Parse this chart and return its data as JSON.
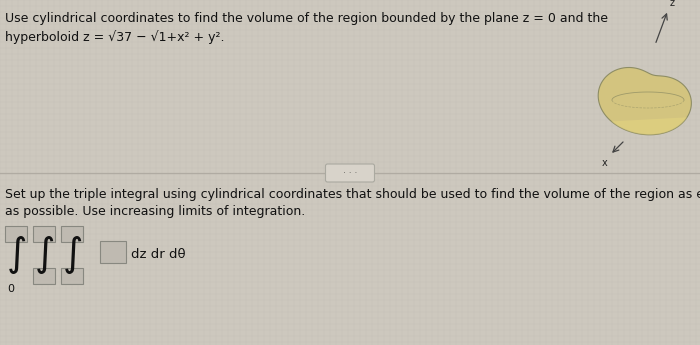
{
  "title_line1": "Use cylindrical coordinates to find the volume of the region bounded by the plane z = 0 and the",
  "title_line2": "hyperboloid z = √37 − √1+x² + y².",
  "subtitle_line1": "Set up the triple integral using cylindrical coordinates that should be used to find the volume of the region as e",
  "subtitle_line2": "as possible. Use increasing limits of integration.",
  "integral_text": "dz dr dθ",
  "bg_color": "#cdc8be",
  "text_color": "#111111",
  "box_color": "#bfbab1",
  "box_edge_color": "#888880",
  "separator_color": "#b0aba2",
  "shape_fill": "#d4c47a",
  "shape_fill2": "#c8b860",
  "shape_edge": "#888860"
}
